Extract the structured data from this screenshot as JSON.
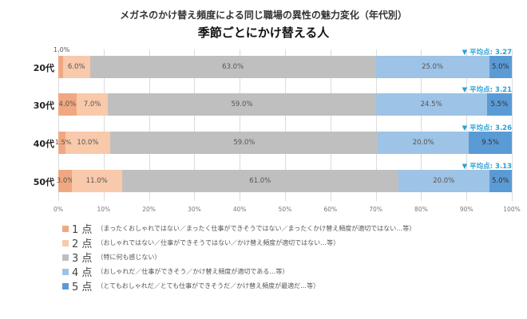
{
  "title": "メガネのかけ替え頻度による同じ職場の異性の魅力変化（年代別）",
  "subtitle": "季節ごとにかけ替える人",
  "chart_data": {
    "type": "bar",
    "orientation": "horizontal",
    "stacked": true,
    "title": "メガネのかけ替え頻度による同じ職場の異性の魅力変化（年代別）",
    "subtitle": "季節ごとにかけ替える人",
    "categories": [
      "20代",
      "30代",
      "40代",
      "50代"
    ],
    "series": [
      {
        "name": "1 点",
        "color": "#f0a882",
        "values": [
          1.0,
          4.0,
          1.5,
          3.0
        ]
      },
      {
        "name": "2 点",
        "color": "#f8c9aa",
        "values": [
          6.0,
          7.0,
          10.0,
          11.0
        ]
      },
      {
        "name": "3 点",
        "color": "#bfbfbf",
        "values": [
          63.0,
          59.0,
          59.0,
          61.0
        ]
      },
      {
        "name": "4 点",
        "color": "#9dc3e6",
        "values": [
          25.0,
          24.5,
          20.0,
          20.0
        ]
      },
      {
        "name": "5 点",
        "color": "#5b9bd5",
        "values": [
          5.0,
          5.5,
          9.5,
          5.0
        ]
      }
    ],
    "labels": [
      [
        "1.0%",
        "6.0%",
        "63.0%",
        "25.0%",
        "5.0%"
      ],
      [
        "4.0%",
        "7.0%",
        "59.0%",
        "24.5%",
        "5.5%"
      ],
      [
        "1.5%",
        "10.0%",
        "59.0%",
        "20.0%",
        "9.5%"
      ],
      [
        "3.0%",
        "11.0%",
        "61.0%",
        "20.0%",
        "5.0%"
      ]
    ],
    "annotations": [
      "▼ 平均点: 3.27",
      "▼ 平均点: 3.21",
      "▼ 平均点: 3.26",
      "▼ 平均点: 3.13"
    ],
    "average_scores": [
      3.27,
      3.21,
      3.26,
      3.13
    ],
    "xticks": [
      "0%",
      "10%",
      "20%",
      "30%",
      "40%",
      "50%",
      "60%",
      "70%",
      "80%",
      "90%",
      "100%"
    ],
    "xlim": [
      0,
      100
    ],
    "xlabel": "",
    "ylabel": "",
    "grid": true,
    "legend_position": "bottom"
  },
  "legend": [
    {
      "name": "1 点",
      "note": "（まったくおしゃれではない／まったく仕事ができそうではない／まったくかけ替え頻度が適切ではない…等）"
    },
    {
      "name": "2 点",
      "note": "（おしゃれではない／仕事ができそうではない／かけ替え頻度が適切ではない…等）"
    },
    {
      "name": "3 点",
      "note": "（特に何も感じない）"
    },
    {
      "name": "4 点",
      "note": "（おしゃれだ／仕事ができそう／かけ替え頻度が適切である…等）"
    },
    {
      "name": "5 点",
      "note": "（とてもおしゃれだ／とても仕事ができそうだ／かけ替え頻度が最適だ…等）"
    }
  ]
}
